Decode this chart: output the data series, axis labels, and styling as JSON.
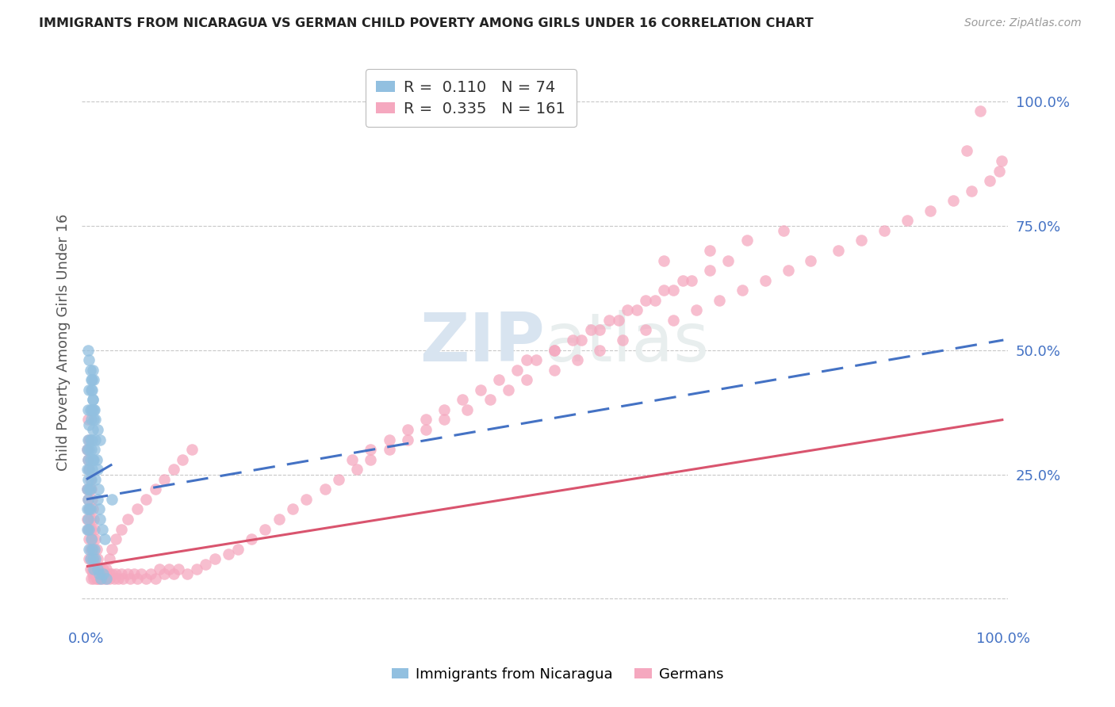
{
  "title": "IMMIGRANTS FROM NICARAGUA VS GERMAN CHILD POVERTY AMONG GIRLS UNDER 16 CORRELATION CHART",
  "source": "Source: ZipAtlas.com",
  "xlabel": "",
  "ylabel": "Child Poverty Among Girls Under 16",
  "xlim": [
    -0.005,
    1.005
  ],
  "ylim": [
    -0.05,
    1.08
  ],
  "y_tick_right_vals": [
    0.25,
    0.5,
    0.75,
    1.0
  ],
  "y_tick_right_labels": [
    "25.0%",
    "50.0%",
    "75.0%",
    "100.0%"
  ],
  "x_tick_vals": [
    0.0,
    1.0
  ],
  "x_tick_labels": [
    "0.0%",
    "100.0%"
  ],
  "blue_R": "0.110",
  "blue_N": "74",
  "pink_R": "0.335",
  "pink_N": "161",
  "blue_color": "#92c0e0",
  "pink_color": "#f5a8bf",
  "blue_line_color": "#4472c4",
  "pink_line_color": "#d9546e",
  "background_color": "#ffffff",
  "grid_color": "#c8c8c8",
  "legend_label_blue": "Immigrants from Nicaragua",
  "legend_label_pink": "Germans",
  "blue_line": {
    "x0": 0.0,
    "x1": 0.028,
    "y0": 0.24,
    "y1": 0.27
  },
  "pink_line": {
    "x0": 0.0,
    "x1": 1.0,
    "y0": 0.065,
    "y1": 0.36
  },
  "blue_dash_line": {
    "x0": 0.0,
    "x1": 1.0,
    "y0": 0.2,
    "y1": 0.52
  },
  "blue_scatter_x": [
    0.001,
    0.001,
    0.001,
    0.001,
    0.001,
    0.002,
    0.002,
    0.002,
    0.002,
    0.002,
    0.002,
    0.003,
    0.003,
    0.003,
    0.003,
    0.003,
    0.003,
    0.003,
    0.004,
    0.004,
    0.004,
    0.004,
    0.004,
    0.005,
    0.005,
    0.005,
    0.005,
    0.006,
    0.006,
    0.006,
    0.006,
    0.007,
    0.007,
    0.007,
    0.007,
    0.008,
    0.008,
    0.008,
    0.009,
    0.009,
    0.01,
    0.01,
    0.011,
    0.012,
    0.012,
    0.013,
    0.014,
    0.015,
    0.017,
    0.02,
    0.002,
    0.003,
    0.004,
    0.005,
    0.006,
    0.007,
    0.008,
    0.01,
    0.012,
    0.015,
    0.003,
    0.004,
    0.005,
    0.006,
    0.007,
    0.008,
    0.009,
    0.01,
    0.012,
    0.014,
    0.016,
    0.018,
    0.022,
    0.028
  ],
  "blue_scatter_y": [
    0.22,
    0.26,
    0.3,
    0.18,
    0.14,
    0.32,
    0.28,
    0.24,
    0.2,
    0.16,
    0.38,
    0.35,
    0.3,
    0.26,
    0.22,
    0.18,
    0.14,
    0.42,
    0.38,
    0.32,
    0.28,
    0.22,
    0.18,
    0.42,
    0.36,
    0.3,
    0.24,
    0.44,
    0.38,
    0.32,
    0.26,
    0.46,
    0.4,
    0.34,
    0.28,
    0.44,
    0.36,
    0.28,
    0.38,
    0.3,
    0.32,
    0.24,
    0.28,
    0.26,
    0.2,
    0.22,
    0.18,
    0.16,
    0.14,
    0.12,
    0.5,
    0.48,
    0.46,
    0.44,
    0.42,
    0.4,
    0.38,
    0.36,
    0.34,
    0.32,
    0.1,
    0.08,
    0.12,
    0.1,
    0.08,
    0.06,
    0.1,
    0.08,
    0.06,
    0.05,
    0.04,
    0.05,
    0.04,
    0.2
  ],
  "pink_scatter_x": [
    0.001,
    0.001,
    0.001,
    0.002,
    0.002,
    0.002,
    0.002,
    0.003,
    0.003,
    0.003,
    0.003,
    0.003,
    0.004,
    0.004,
    0.004,
    0.004,
    0.005,
    0.005,
    0.005,
    0.005,
    0.006,
    0.006,
    0.006,
    0.007,
    0.007,
    0.007,
    0.008,
    0.008,
    0.008,
    0.009,
    0.009,
    0.01,
    0.01,
    0.011,
    0.011,
    0.012,
    0.012,
    0.013,
    0.014,
    0.015,
    0.015,
    0.016,
    0.018,
    0.018,
    0.02,
    0.022,
    0.022,
    0.025,
    0.025,
    0.028,
    0.03,
    0.032,
    0.035,
    0.038,
    0.04,
    0.045,
    0.048,
    0.052,
    0.055,
    0.06,
    0.065,
    0.07,
    0.075,
    0.08,
    0.085,
    0.09,
    0.095,
    0.1,
    0.11,
    0.12,
    0.13,
    0.14,
    0.155,
    0.165,
    0.18,
    0.195,
    0.21,
    0.225,
    0.24,
    0.26,
    0.275,
    0.295,
    0.31,
    0.33,
    0.35,
    0.37,
    0.39,
    0.415,
    0.44,
    0.46,
    0.48,
    0.51,
    0.535,
    0.56,
    0.585,
    0.61,
    0.64,
    0.665,
    0.69,
    0.715,
    0.74,
    0.765,
    0.79,
    0.82,
    0.845,
    0.87,
    0.895,
    0.92,
    0.945,
    0.965,
    0.985,
    0.995,
    0.998,
    0.96,
    0.975,
    0.63,
    0.68,
    0.72,
    0.76,
    0.48,
    0.51,
    0.54,
    0.56,
    0.58,
    0.6,
    0.62,
    0.64,
    0.66,
    0.68,
    0.7,
    0.29,
    0.31,
    0.33,
    0.35,
    0.37,
    0.39,
    0.41,
    0.43,
    0.45,
    0.47,
    0.49,
    0.51,
    0.53,
    0.55,
    0.57,
    0.59,
    0.61,
    0.63,
    0.65,
    0.025,
    0.028,
    0.032,
    0.038,
    0.045,
    0.055,
    0.065,
    0.075,
    0.085,
    0.095,
    0.105,
    0.115
  ],
  "pink_scatter_y": [
    0.3,
    0.22,
    0.16,
    0.28,
    0.2,
    0.14,
    0.36,
    0.26,
    0.18,
    0.12,
    0.08,
    0.32,
    0.24,
    0.16,
    0.1,
    0.06,
    0.22,
    0.14,
    0.08,
    0.04,
    0.2,
    0.12,
    0.06,
    0.18,
    0.1,
    0.05,
    0.16,
    0.08,
    0.04,
    0.14,
    0.06,
    0.12,
    0.05,
    0.1,
    0.04,
    0.08,
    0.04,
    0.06,
    0.05,
    0.06,
    0.04,
    0.05,
    0.04,
    0.06,
    0.05,
    0.04,
    0.06,
    0.05,
    0.04,
    0.05,
    0.04,
    0.05,
    0.04,
    0.05,
    0.04,
    0.05,
    0.04,
    0.05,
    0.04,
    0.05,
    0.04,
    0.05,
    0.04,
    0.06,
    0.05,
    0.06,
    0.05,
    0.06,
    0.05,
    0.06,
    0.07,
    0.08,
    0.09,
    0.1,
    0.12,
    0.14,
    0.16,
    0.18,
    0.2,
    0.22,
    0.24,
    0.26,
    0.28,
    0.3,
    0.32,
    0.34,
    0.36,
    0.38,
    0.4,
    0.42,
    0.44,
    0.46,
    0.48,
    0.5,
    0.52,
    0.54,
    0.56,
    0.58,
    0.6,
    0.62,
    0.64,
    0.66,
    0.68,
    0.7,
    0.72,
    0.74,
    0.76,
    0.78,
    0.8,
    0.82,
    0.84,
    0.86,
    0.88,
    0.9,
    0.98,
    0.68,
    0.7,
    0.72,
    0.74,
    0.48,
    0.5,
    0.52,
    0.54,
    0.56,
    0.58,
    0.6,
    0.62,
    0.64,
    0.66,
    0.68,
    0.28,
    0.3,
    0.32,
    0.34,
    0.36,
    0.38,
    0.4,
    0.42,
    0.44,
    0.46,
    0.48,
    0.5,
    0.52,
    0.54,
    0.56,
    0.58,
    0.6,
    0.62,
    0.64,
    0.08,
    0.1,
    0.12,
    0.14,
    0.16,
    0.18,
    0.2,
    0.22,
    0.24,
    0.26,
    0.28,
    0.3
  ]
}
